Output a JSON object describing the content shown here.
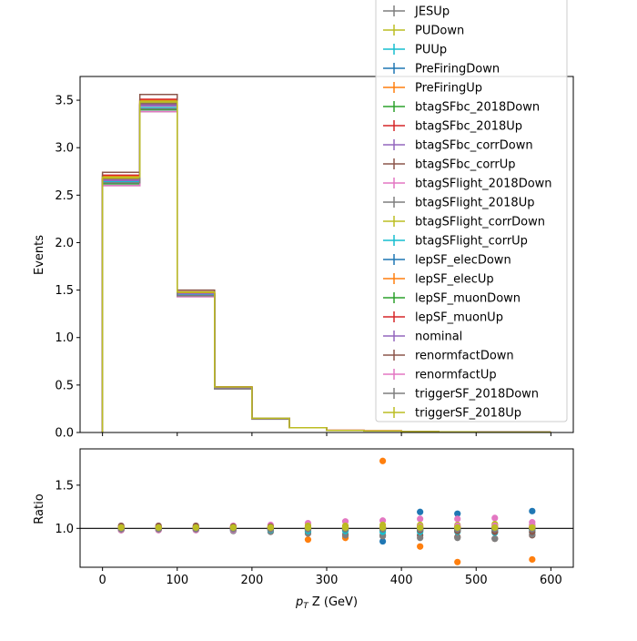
{
  "chart_data": {
    "type": "step-histogram-with-ratio",
    "xlabel_prefix": "p",
    "xlabel_sub": "T",
    "xlabel_suffix": " Z (GeV)",
    "ylabel_top": "Events",
    "ylabel_bottom": "Ratio",
    "xlim": [
      -30,
      630
    ],
    "ylim_top": [
      0,
      3.75
    ],
    "ylim_bottom": [
      0.55,
      1.92
    ],
    "x_ticks": [
      0,
      100,
      200,
      300,
      400,
      500,
      600
    ],
    "y_ticks_top": [
      "0.0",
      "0.5",
      "1.0",
      "1.5",
      "2.0",
      "2.5",
      "3.0",
      "3.5"
    ],
    "y_ticks_bottom": [
      "1.0",
      "1.5"
    ],
    "bin_edges": [
      0,
      50,
      100,
      150,
      200,
      250,
      300,
      350,
      400,
      450,
      500,
      550,
      600
    ],
    "bin_centers": [
      25,
      75,
      125,
      175,
      225,
      275,
      325,
      375,
      425,
      475,
      525,
      575
    ],
    "ratio_reference": 1.0,
    "grid": false,
    "legend_position": "top-right",
    "series": [
      {
        "name": "JESUp",
        "color": "#7f7f7f",
        "values": [
          2.68,
          3.47,
          1.47,
          0.47,
          0.15,
          0.05,
          0.022,
          0.017,
          0.009,
          0.006,
          0.004,
          0.003
        ],
        "ratio": [
          1.01,
          1.0,
          1.0,
          1.0,
          1.0,
          0.97,
          0.98,
          0.98,
          0.98,
          0.98,
          0.99,
          0.99
        ]
      },
      {
        "name": "PUDown",
        "color": "#bcbd22",
        "values": [
          2.66,
          3.45,
          1.46,
          0.47,
          0.15,
          0.05,
          0.022,
          0.017,
          0.009,
          0.006,
          0.004,
          0.003
        ],
        "ratio": [
          1.0,
          1.0,
          1.0,
          1.01,
          1.01,
          1.01,
          1.02,
          1.01,
          1.03,
          1.02,
          1.04,
          1.03
        ]
      },
      {
        "name": "PUUp",
        "color": "#17becf",
        "values": [
          2.67,
          3.46,
          1.46,
          0.47,
          0.15,
          0.05,
          0.022,
          0.017,
          0.009,
          0.006,
          0.004,
          0.003
        ],
        "ratio": [
          1.0,
          1.0,
          1.0,
          1.0,
          0.99,
          0.99,
          0.98,
          0.99,
          0.97,
          0.98,
          0.97,
          0.98
        ]
      },
      {
        "name": "PreFiringDown",
        "color": "#1f77b4",
        "values": [
          2.66,
          3.45,
          1.46,
          0.47,
          0.15,
          0.05,
          0.022,
          0.017,
          0.009,
          0.006,
          0.004,
          0.003
        ],
        "ratio": [
          1.0,
          1.0,
          1.0,
          1.0,
          1.0,
          1.0,
          0.92,
          0.85,
          1.19,
          1.17,
          0.96,
          1.2
        ]
      },
      {
        "name": "PreFiringUp",
        "color": "#ff7f0e",
        "values": [
          2.66,
          3.45,
          1.46,
          0.47,
          0.15,
          0.05,
          0.022,
          0.017,
          0.009,
          0.006,
          0.004,
          0.003
        ],
        "ratio": [
          1.0,
          1.0,
          1.0,
          1.0,
          1.0,
          0.87,
          0.89,
          1.78,
          0.79,
          0.61,
          1.0,
          0.64
        ]
      },
      {
        "name": "btagSFbc_2018Down",
        "color": "#2ca02c",
        "values": [
          2.65,
          3.44,
          1.46,
          0.47,
          0.15,
          0.05,
          0.022,
          0.017,
          0.009,
          0.006,
          0.004,
          0.003
        ],
        "ratio": [
          1.0,
          1.0,
          1.0,
          1.0,
          1.0,
          1.0,
          1.0,
          1.0,
          1.0,
          1.0,
          1.0,
          1.0
        ]
      },
      {
        "name": "btagSFbc_2018Up",
        "color": "#d62728",
        "values": [
          2.67,
          3.46,
          1.46,
          0.47,
          0.15,
          0.05,
          0.022,
          0.017,
          0.009,
          0.006,
          0.004,
          0.003
        ],
        "ratio": [
          1.0,
          1.0,
          1.0,
          1.0,
          1.0,
          1.0,
          1.0,
          1.0,
          1.0,
          1.0,
          1.0,
          1.0
        ]
      },
      {
        "name": "btagSFbc_corrDown",
        "color": "#9467bd",
        "values": [
          2.65,
          3.44,
          1.46,
          0.47,
          0.15,
          0.05,
          0.022,
          0.017,
          0.009,
          0.006,
          0.004,
          0.003
        ],
        "ratio": [
          1.0,
          1.0,
          1.0,
          1.0,
          1.0,
          1.0,
          1.0,
          1.0,
          1.0,
          1.0,
          1.0,
          1.0
        ]
      },
      {
        "name": "btagSFbc_corrUp",
        "color": "#8c564b",
        "values": [
          2.67,
          3.46,
          1.46,
          0.47,
          0.15,
          0.05,
          0.022,
          0.017,
          0.009,
          0.006,
          0.004,
          0.003
        ],
        "ratio": [
          0.98,
          0.99,
          0.99,
          0.98,
          0.98,
          0.95,
          0.93,
          0.92,
          0.92,
          0.9,
          0.88,
          0.92
        ]
      },
      {
        "name": "btagSFlight_2018Down",
        "color": "#e377c2",
        "values": [
          2.7,
          3.5,
          1.48,
          0.48,
          0.15,
          0.05,
          0.023,
          0.018,
          0.009,
          0.006,
          0.004,
          0.003
        ],
        "ratio": [
          1.02,
          1.02,
          1.02,
          1.03,
          1.04,
          1.06,
          1.08,
          1.09,
          1.11,
          1.11,
          1.12,
          1.07
        ]
      },
      {
        "name": "btagSFlight_2018Up",
        "color": "#7f7f7f",
        "values": [
          2.6,
          3.38,
          1.43,
          0.46,
          0.14,
          0.05,
          0.021,
          0.016,
          0.008,
          0.006,
          0.004,
          0.003
        ],
        "ratio": [
          0.98,
          0.98,
          0.98,
          0.97,
          0.96,
          0.94,
          0.92,
          0.91,
          0.89,
          0.89,
          0.88,
          0.93
        ]
      },
      {
        "name": "btagSFlight_corrDown",
        "color": "#bcbd22",
        "values": [
          2.68,
          3.48,
          1.47,
          0.47,
          0.15,
          0.05,
          0.022,
          0.017,
          0.009,
          0.006,
          0.004,
          0.003
        ],
        "ratio": [
          1.01,
          1.01,
          1.01,
          1.02,
          1.02,
          1.03,
          1.03,
          1.04,
          1.04,
          1.04,
          1.05,
          1.04
        ]
      },
      {
        "name": "btagSFlight_corrUp",
        "color": "#17becf",
        "values": [
          2.64,
          3.42,
          1.45,
          0.47,
          0.15,
          0.05,
          0.022,
          0.017,
          0.009,
          0.006,
          0.004,
          0.003
        ],
        "ratio": [
          0.99,
          0.99,
          0.99,
          0.98,
          0.98,
          0.97,
          0.97,
          0.96,
          0.96,
          0.96,
          0.95,
          0.96
        ]
      },
      {
        "name": "lepSF_elecDown",
        "color": "#1f77b4",
        "values": [
          2.62,
          3.4,
          1.44,
          0.46,
          0.15,
          0.05,
          0.022,
          0.017,
          0.009,
          0.006,
          0.004,
          0.003
        ],
        "ratio": [
          0.99,
          0.99,
          0.99,
          0.99,
          0.99,
          0.99,
          0.99,
          0.99,
          0.99,
          0.99,
          0.99,
          0.99
        ]
      },
      {
        "name": "lepSF_elecUp",
        "color": "#ff7f0e",
        "values": [
          2.7,
          3.5,
          1.48,
          0.48,
          0.15,
          0.05,
          0.023,
          0.018,
          0.009,
          0.006,
          0.004,
          0.003
        ],
        "ratio": [
          1.01,
          1.01,
          1.01,
          1.01,
          1.01,
          1.01,
          1.01,
          1.01,
          1.01,
          1.01,
          1.01,
          1.01
        ]
      },
      {
        "name": "lepSF_muonDown",
        "color": "#2ca02c",
        "values": [
          2.62,
          3.4,
          1.44,
          0.46,
          0.15,
          0.05,
          0.022,
          0.017,
          0.009,
          0.006,
          0.004,
          0.003
        ],
        "ratio": [
          0.99,
          0.99,
          0.99,
          0.99,
          0.99,
          0.99,
          0.99,
          0.99,
          0.99,
          0.99,
          0.99,
          0.99
        ]
      },
      {
        "name": "lepSF_muonUp",
        "color": "#d62728",
        "values": [
          2.71,
          3.51,
          1.48,
          0.48,
          0.15,
          0.05,
          0.023,
          0.018,
          0.009,
          0.006,
          0.004,
          0.003
        ],
        "ratio": [
          1.01,
          1.01,
          1.01,
          1.01,
          1.01,
          1.01,
          1.01,
          1.01,
          1.01,
          1.01,
          1.01,
          1.01
        ]
      },
      {
        "name": "nominal",
        "color": "#9467bd",
        "values": [
          2.66,
          3.45,
          1.46,
          0.47,
          0.15,
          0.05,
          0.022,
          0.017,
          0.009,
          0.006,
          0.004,
          0.003
        ],
        "ratio": [
          1.0,
          1.0,
          1.0,
          1.0,
          1.0,
          1.0,
          1.0,
          1.0,
          1.0,
          1.0,
          1.0,
          1.0
        ]
      },
      {
        "name": "renormfactDown",
        "color": "#8c564b",
        "values": [
          2.74,
          3.56,
          1.5,
          0.48,
          0.15,
          0.05,
          0.022,
          0.017,
          0.009,
          0.006,
          0.004,
          0.003
        ],
        "ratio": [
          1.03,
          1.03,
          1.03,
          1.02,
          1.02,
          1.01,
          1.0,
          0.99,
          0.98,
          0.97,
          0.96,
          0.96
        ]
      },
      {
        "name": "renormfactUp",
        "color": "#e377c2",
        "values": [
          2.6,
          3.38,
          1.43,
          0.46,
          0.15,
          0.05,
          0.022,
          0.017,
          0.009,
          0.006,
          0.004,
          0.003
        ],
        "ratio": [
          0.98,
          0.98,
          0.98,
          0.98,
          0.99,
          0.99,
          1.0,
          1.01,
          1.02,
          1.03,
          1.03,
          1.04
        ]
      },
      {
        "name": "triggerSF_2018Down",
        "color": "#7f7f7f",
        "values": [
          2.63,
          3.41,
          1.44,
          0.46,
          0.15,
          0.05,
          0.022,
          0.017,
          0.009,
          0.006,
          0.004,
          0.003
        ],
        "ratio": [
          0.99,
          0.99,
          0.99,
          0.99,
          0.99,
          0.99,
          0.99,
          0.99,
          0.99,
          0.99,
          0.99,
          0.99
        ]
      },
      {
        "name": "triggerSF_2018Up",
        "color": "#bcbd22",
        "values": [
          2.69,
          3.49,
          1.48,
          0.48,
          0.15,
          0.05,
          0.022,
          0.017,
          0.009,
          0.006,
          0.004,
          0.003
        ],
        "ratio": [
          1.01,
          1.01,
          1.01,
          1.01,
          1.01,
          1.01,
          1.01,
          1.01,
          1.01,
          1.01,
          1.01,
          1.01
        ]
      }
    ]
  }
}
